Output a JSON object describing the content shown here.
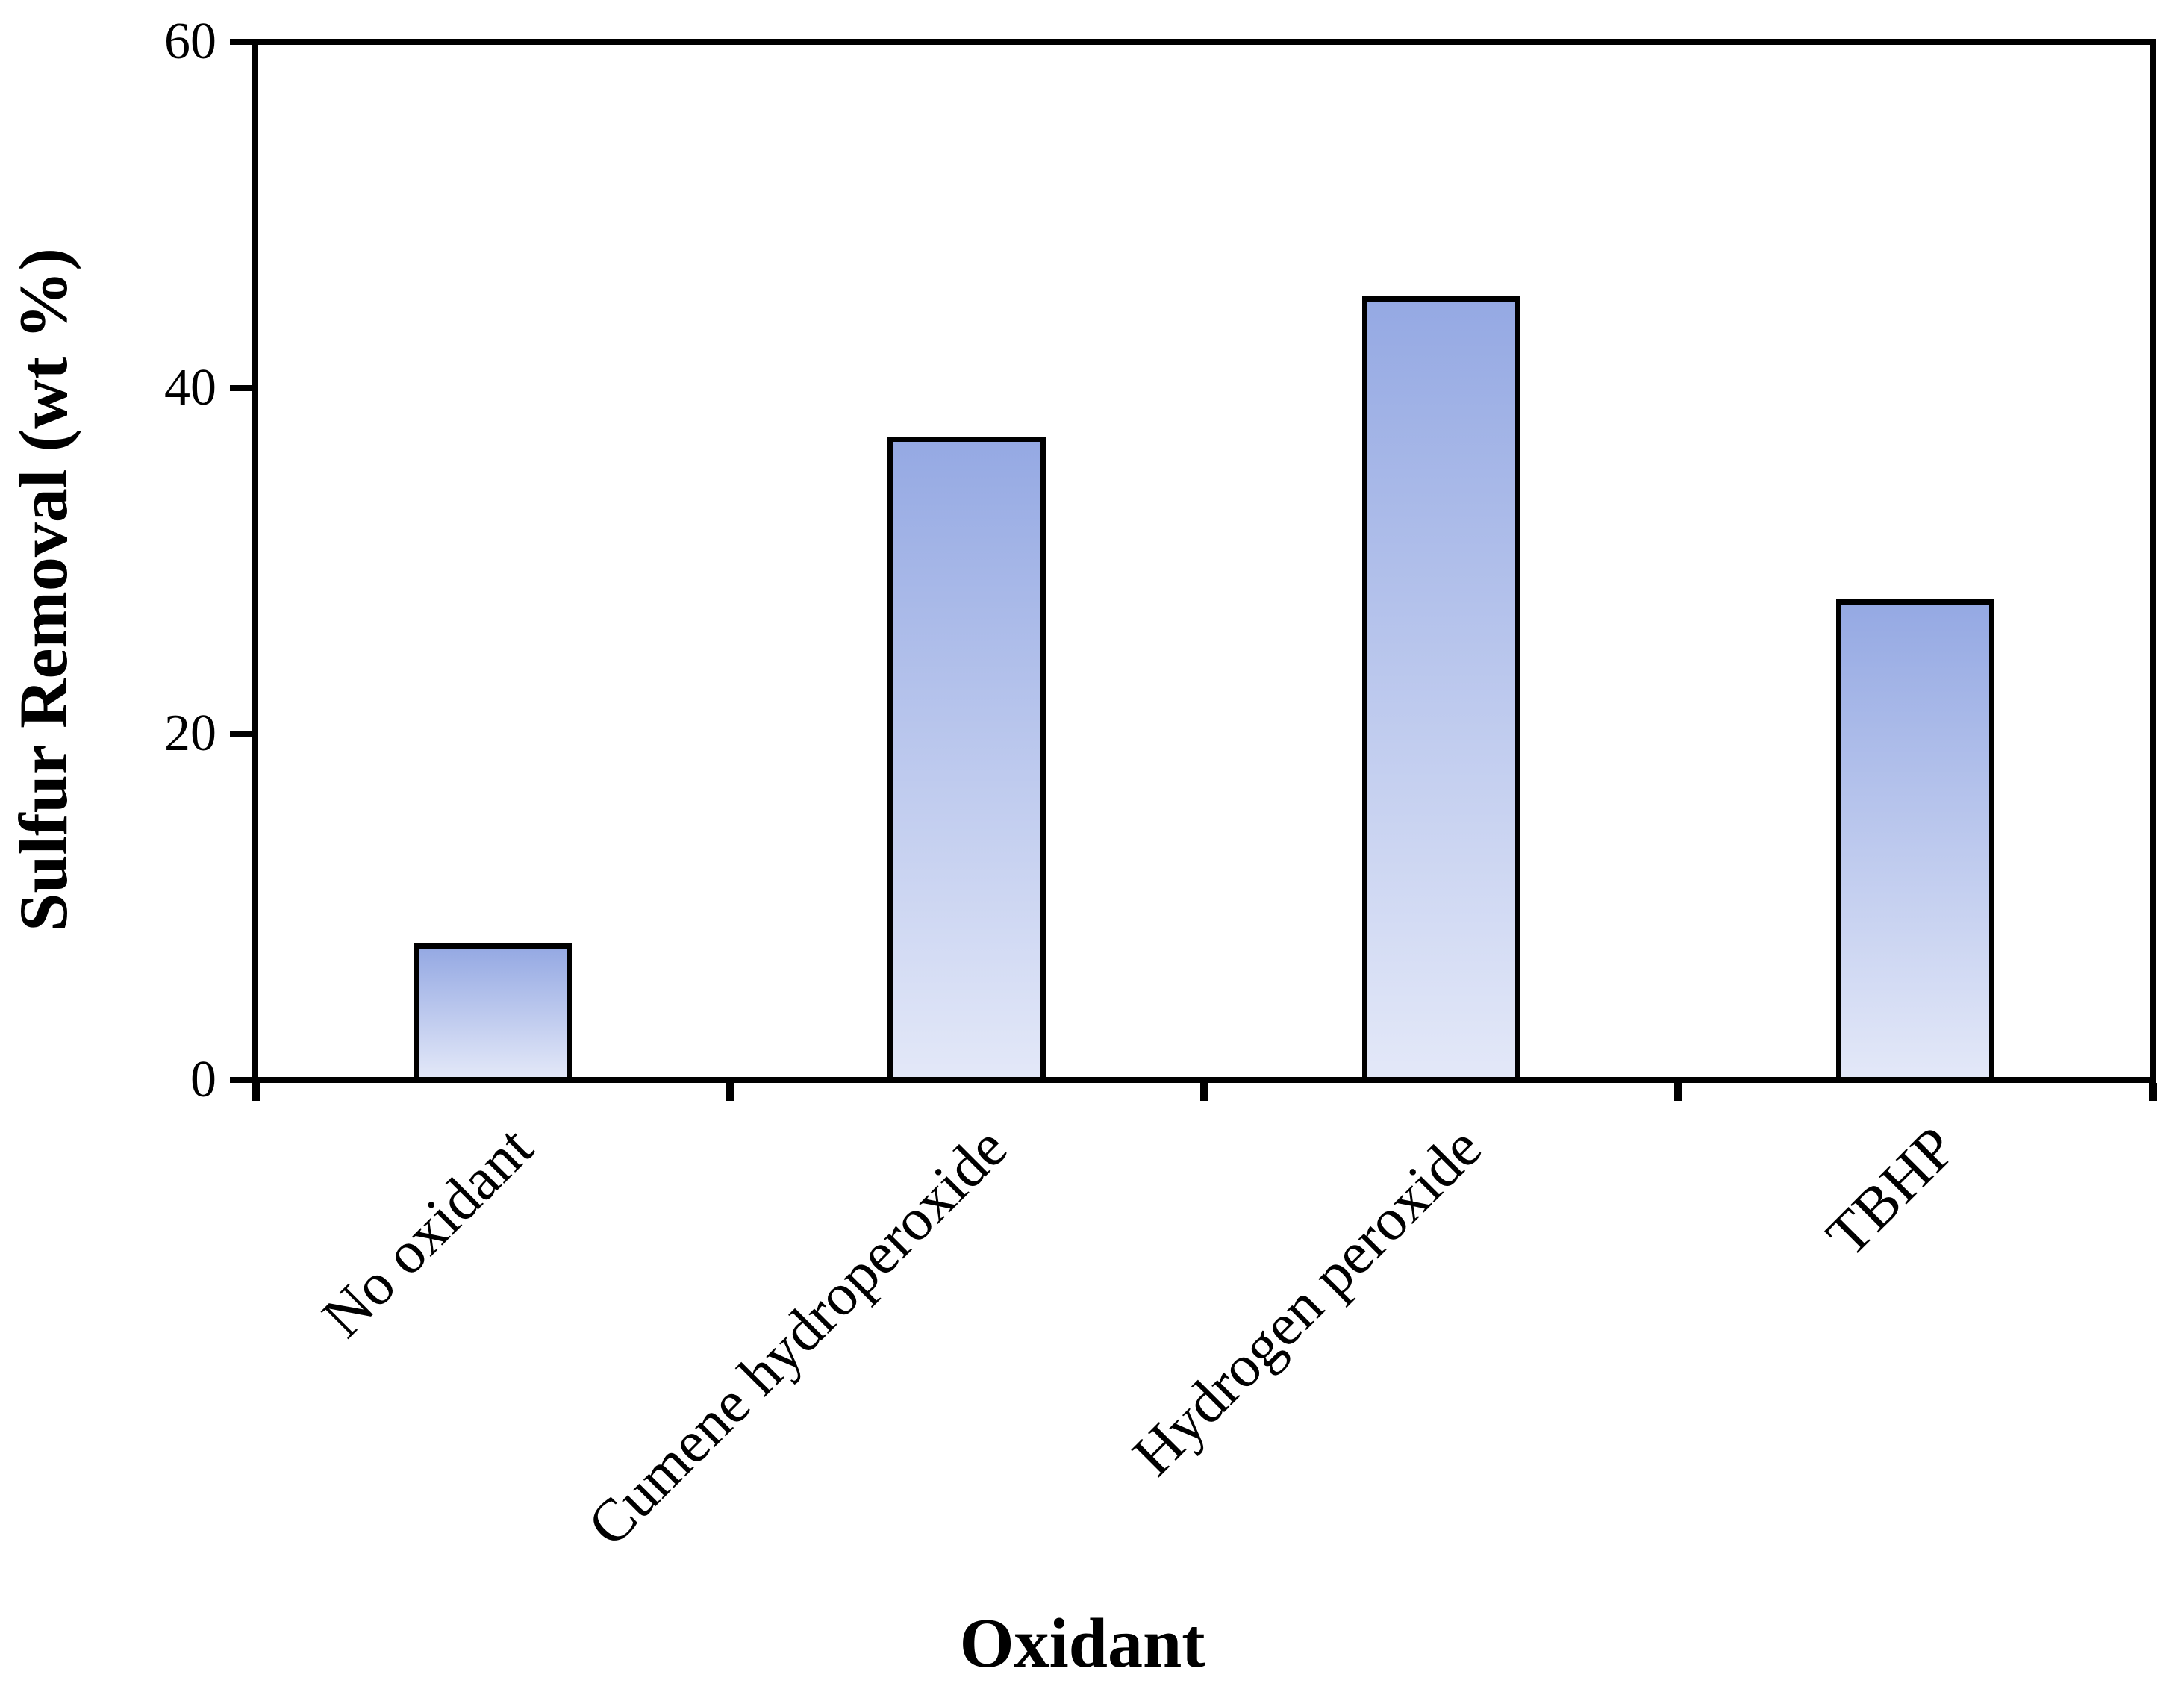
{
  "figure": {
    "background": "#FFFFFF",
    "axis_color": "#000000"
  },
  "chart_data": {
    "type": "bar",
    "title": "",
    "xlabel": "Oxidant",
    "ylabel": "Sulfur Removal (wt %)",
    "categories": [
      "No oxidant",
      "Cumene hydroperoxide",
      "Hydrogen peroxide",
      "TBHP"
    ],
    "values": [
      7.9,
      37.2,
      45.3,
      27.8
    ],
    "series_name": "Sulfur Removal (wt %)",
    "ylim": [
      0,
      60
    ],
    "ytick_values": [
      0,
      20,
      40,
      60
    ],
    "ytick_labels": [
      "0",
      "20",
      "40",
      "60"
    ],
    "xtick_style": "ticks-at-category-boundaries",
    "category_label_rotation_deg": 45,
    "grid": false,
    "legend": "none",
    "bar_border_color": "#000000",
    "bar_gradient_top": "#95A9E3",
    "bar_gradient_bottom": "#E3E8F8"
  }
}
